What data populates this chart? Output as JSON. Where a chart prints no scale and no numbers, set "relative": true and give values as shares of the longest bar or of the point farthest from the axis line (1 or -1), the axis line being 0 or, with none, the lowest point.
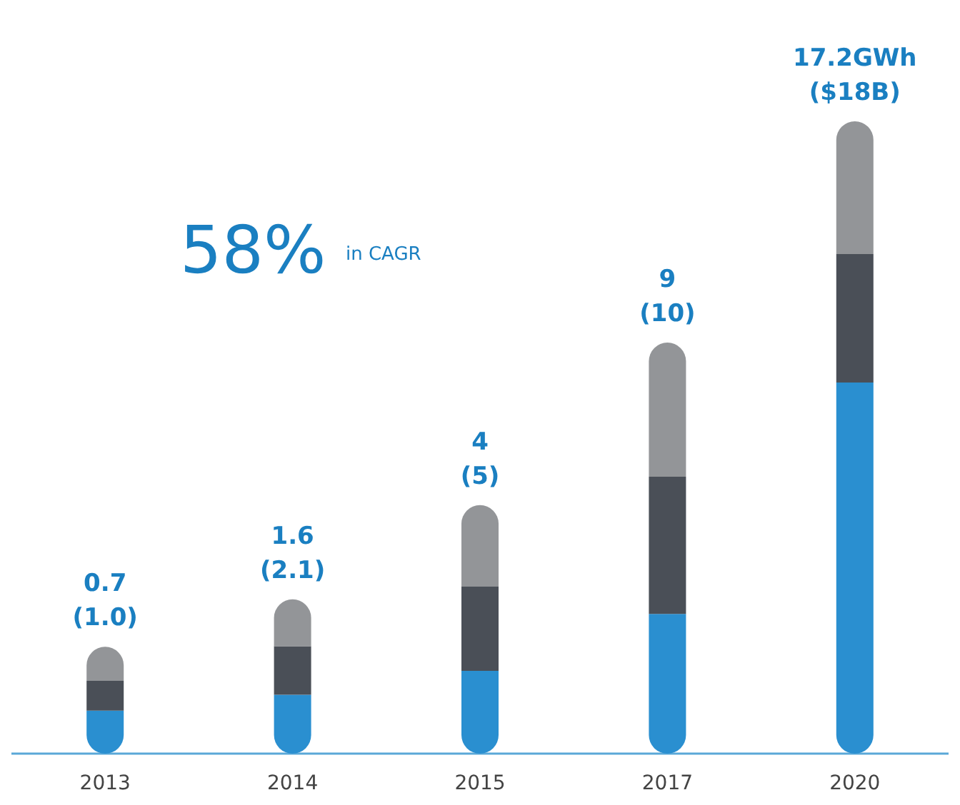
{
  "chart_data": {
    "type": "bar",
    "relative": true,
    "stacked": true,
    "categories": [
      "2013",
      "2014",
      "2015",
      "2017",
      "2020"
    ],
    "series": [
      {
        "color": "#2a8fd0",
        "values": [
          0.068,
          0.093,
          0.131,
          0.221,
          0.587
        ]
      },
      {
        "color": "#4a4f57",
        "values": [
          0.047,
          0.077,
          0.133,
          0.217,
          0.203
        ]
      },
      {
        "color": "#939598",
        "values": [
          0.054,
          0.074,
          0.129,
          0.212,
          0.21
        ]
      }
    ],
    "totals": [
      "0.7\n(1.0)",
      "1.6\n(2.1)",
      "4\n(5)",
      "9\n(10)",
      "17.2GWh\n($18B)"
    ],
    "annotations": [
      "58%",
      "in CAGR"
    ],
    "grid": false
  }
}
